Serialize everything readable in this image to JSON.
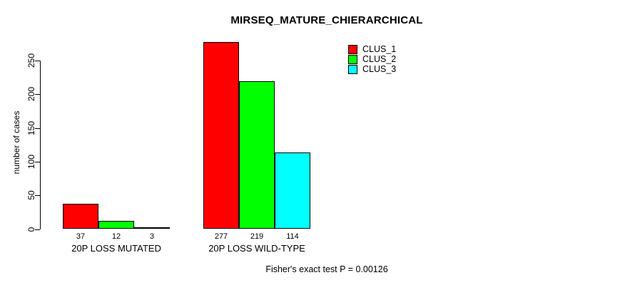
{
  "chart_data": {
    "type": "bar",
    "title": "MIRSEQ_MATURE_CHIERARCHICAL",
    "xlabel": "",
    "ylabel": "number of cases",
    "ylim": [
      0,
      250
    ],
    "yticks": [
      0,
      50,
      100,
      150,
      200,
      250
    ],
    "grid": false,
    "legend_position": "top-right",
    "bar_value_labels": true,
    "categories": [
      "20P LOSS MUTATED",
      "20P LOSS WILD-TYPE"
    ],
    "series": [
      {
        "name": "CLUS_1",
        "color": "#ff0000",
        "values": [
          37,
          277
        ]
      },
      {
        "name": "CLUS_2",
        "color": "#00ff00",
        "values": [
          12,
          219
        ]
      },
      {
        "name": "CLUS_3",
        "color": "#00ffff",
        "values": [
          3,
          114
        ]
      }
    ],
    "annotation": "Fisher's exact test P = 0.00126"
  },
  "colors": {
    "background": "#ffffff",
    "bar_border": "#000000",
    "text": "#000000"
  }
}
